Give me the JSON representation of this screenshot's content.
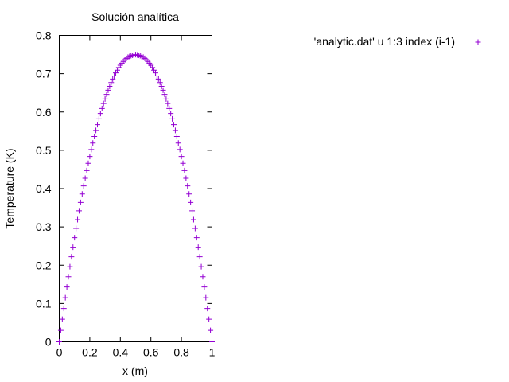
{
  "chart_data": {
    "type": "scatter",
    "title": "Solución analítica",
    "xlabel": "x (m)",
    "ylabel": "Temperature (K)",
    "xlim": [
      0,
      1
    ],
    "ylim": [
      0,
      0.8
    ],
    "x_ticks": [
      "0",
      "0.2",
      "0.4",
      "0.6",
      "0.8",
      "1"
    ],
    "x_tick_values": [
      0,
      0.2,
      0.4,
      0.6,
      0.8,
      1
    ],
    "y_ticks": [
      "0",
      "0.1",
      "0.2",
      "0.3",
      "0.4",
      "0.5",
      "0.6",
      "0.7",
      "0.8"
    ],
    "y_tick_values": [
      0,
      0.1,
      0.2,
      0.3,
      0.4,
      0.5,
      0.6,
      0.7,
      0.8
    ],
    "legend_position": "top-right (outside plot)",
    "marker": "+",
    "series": [
      {
        "name": "'analytic.dat' u 1:3 index (i-1)",
        "color": "#9400d3",
        "x": [
          0.0,
          0.01,
          0.02,
          0.03,
          0.04,
          0.05,
          0.06,
          0.07,
          0.08,
          0.09,
          0.1,
          0.11,
          0.12,
          0.13,
          0.14,
          0.15,
          0.16,
          0.17,
          0.18,
          0.19,
          0.2,
          0.21,
          0.22,
          0.23,
          0.24,
          0.25,
          0.26,
          0.27,
          0.28,
          0.29,
          0.3,
          0.31,
          0.32,
          0.33,
          0.34,
          0.35,
          0.36,
          0.37,
          0.38,
          0.39,
          0.4,
          0.41,
          0.42,
          0.43,
          0.44,
          0.45,
          0.46,
          0.47,
          0.48,
          0.49,
          0.5,
          0.51,
          0.52,
          0.53,
          0.54,
          0.55,
          0.56,
          0.57,
          0.58,
          0.59,
          0.6,
          0.61,
          0.62,
          0.63,
          0.64,
          0.65,
          0.66,
          0.67,
          0.68,
          0.69,
          0.7,
          0.71,
          0.72,
          0.73,
          0.74,
          0.75,
          0.76,
          0.77,
          0.78,
          0.79,
          0.8,
          0.81,
          0.82,
          0.83,
          0.84,
          0.85,
          0.86,
          0.87,
          0.88,
          0.89,
          0.9,
          0.91,
          0.92,
          0.93,
          0.94,
          0.95,
          0.96,
          0.97,
          0.98,
          0.99,
          1.0
        ],
        "y": [
          0.0,
          0.03,
          0.059,
          0.087,
          0.115,
          0.143,
          0.17,
          0.196,
          0.222,
          0.247,
          0.272,
          0.296,
          0.319,
          0.342,
          0.364,
          0.386,
          0.407,
          0.427,
          0.447,
          0.466,
          0.484,
          0.502,
          0.519,
          0.536,
          0.552,
          0.567,
          0.582,
          0.596,
          0.609,
          0.622,
          0.634,
          0.646,
          0.657,
          0.667,
          0.677,
          0.686,
          0.694,
          0.702,
          0.709,
          0.716,
          0.722,
          0.727,
          0.732,
          0.736,
          0.74,
          0.743,
          0.745,
          0.747,
          0.748,
          0.749,
          0.75,
          0.749,
          0.748,
          0.747,
          0.745,
          0.743,
          0.74,
          0.736,
          0.732,
          0.727,
          0.722,
          0.716,
          0.709,
          0.702,
          0.694,
          0.686,
          0.677,
          0.667,
          0.657,
          0.646,
          0.634,
          0.622,
          0.609,
          0.596,
          0.582,
          0.567,
          0.552,
          0.536,
          0.519,
          0.502,
          0.484,
          0.466,
          0.447,
          0.427,
          0.407,
          0.386,
          0.364,
          0.342,
          0.319,
          0.296,
          0.272,
          0.247,
          0.222,
          0.196,
          0.17,
          0.143,
          0.115,
          0.087,
          0.059,
          0.03,
          0.0
        ]
      }
    ]
  }
}
